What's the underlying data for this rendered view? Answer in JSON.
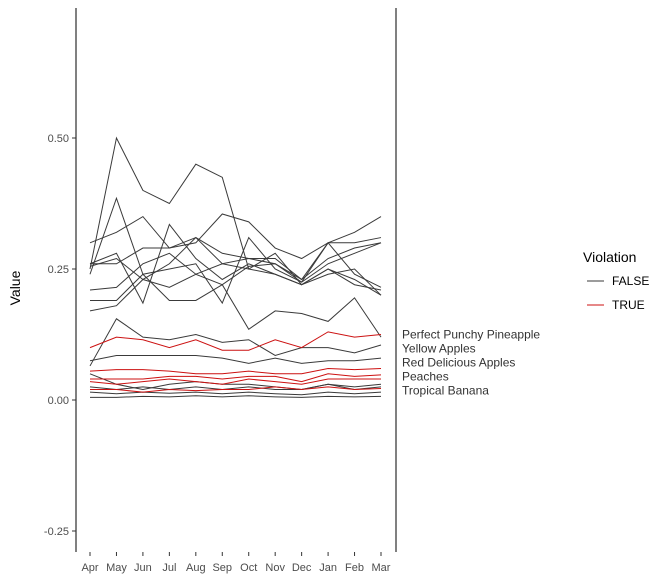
{
  "chart_data": {
    "type": "line",
    "title": "",
    "xlabel": "",
    "ylabel": "Value",
    "x": [
      "Apr",
      "May",
      "Jun",
      "Jul",
      "Aug",
      "Sep",
      "Oct",
      "Nov",
      "Dec",
      "Jan",
      "Feb",
      "Mar"
    ],
    "ylim": [
      -0.29,
      0.75
    ],
    "yticks": [
      -0.25,
      0.0,
      0.25,
      0.5
    ],
    "ytick_labels": [
      "-0.25",
      "0.00",
      "0.25",
      "0.50"
    ],
    "grid": false,
    "legend": {
      "title": "Violation",
      "placement": "right",
      "entries": [
        {
          "label": "FALSE",
          "color": "#3a3a3a"
        },
        {
          "label": "TRUE",
          "color": "#cc1111"
        }
      ]
    },
    "series": [
      {
        "name": "",
        "violation": false,
        "values": [
          0.25,
          0.5,
          0.4,
          0.375,
          0.45,
          0.425,
          0.25,
          0.28,
          0.22,
          0.25,
          0.23,
          0.2
        ]
      },
      {
        "name": "",
        "violation": false,
        "values": [
          0.24,
          0.385,
          0.24,
          0.25,
          0.26,
          0.185,
          0.31,
          0.25,
          0.225,
          0.3,
          0.3,
          0.31
        ]
      },
      {
        "name": "",
        "violation": false,
        "values": [
          0.3,
          0.32,
          0.35,
          0.29,
          0.31,
          0.26,
          0.27,
          0.26,
          0.23,
          0.27,
          0.29,
          0.3
        ]
      },
      {
        "name": "",
        "violation": false,
        "values": [
          0.26,
          0.28,
          0.185,
          0.335,
          0.27,
          0.23,
          0.26,
          0.24,
          0.22,
          0.24,
          0.25,
          0.2
        ]
      },
      {
        "name": "",
        "violation": false,
        "values": [
          0.26,
          0.26,
          0.29,
          0.29,
          0.3,
          0.355,
          0.34,
          0.29,
          0.27,
          0.3,
          0.32,
          0.35
        ]
      },
      {
        "name": "",
        "violation": false,
        "values": [
          0.255,
          0.27,
          0.23,
          0.26,
          0.31,
          0.28,
          0.27,
          0.27,
          0.23,
          0.3,
          0.24,
          0.215
        ]
      },
      {
        "name": "",
        "violation": false,
        "values": [
          0.21,
          0.215,
          0.26,
          0.28,
          0.24,
          0.26,
          0.25,
          0.24,
          0.22,
          0.25,
          0.22,
          0.21
        ]
      },
      {
        "name": "",
        "violation": false,
        "values": [
          0.17,
          0.18,
          0.23,
          0.215,
          0.24,
          0.22,
          0.255,
          0.26,
          0.225,
          0.26,
          0.28,
          0.3
        ]
      },
      {
        "name": "",
        "violation": false,
        "values": [
          0.19,
          0.19,
          0.24,
          0.19,
          0.19,
          0.22,
          0.135,
          0.17,
          0.165,
          0.15,
          0.195,
          0.12
        ]
      },
      {
        "name": "Perfect Punchy Pineapple",
        "violation": true,
        "values": [
          0.1,
          0.12,
          0.115,
          0.1,
          0.115,
          0.095,
          0.095,
          0.115,
          0.1,
          0.13,
          0.12,
          0.125
        ]
      },
      {
        "name": "Yellow Apples",
        "violation": false,
        "values": [
          0.065,
          0.155,
          0.12,
          0.115,
          0.125,
          0.11,
          0.115,
          0.085,
          0.1,
          0.1,
          0.09,
          0.105
        ]
      },
      {
        "name": "Red Delicious Apples",
        "violation": false,
        "values": [
          0.075,
          0.085,
          0.085,
          0.085,
          0.085,
          0.08,
          0.07,
          0.08,
          0.07,
          0.075,
          0.075,
          0.08
        ]
      },
      {
        "name": "",
        "violation": true,
        "values": [
          0.055,
          0.058,
          0.058,
          0.055,
          0.05,
          0.05,
          0.055,
          0.05,
          0.05,
          0.06,
          0.058,
          0.06
        ]
      },
      {
        "name": "Peaches",
        "violation": true,
        "values": [
          0.04,
          0.04,
          0.04,
          0.045,
          0.045,
          0.04,
          0.045,
          0.045,
          0.035,
          0.05,
          0.045,
          0.048
        ]
      },
      {
        "name": "",
        "violation": true,
        "values": [
          0.035,
          0.03,
          0.035,
          0.04,
          0.035,
          0.03,
          0.04,
          0.035,
          0.03,
          0.04,
          0.04,
          0.04
        ]
      },
      {
        "name": "",
        "violation": false,
        "values": [
          0.05,
          0.03,
          0.02,
          0.03,
          0.035,
          0.03,
          0.03,
          0.025,
          0.02,
          0.03,
          0.025,
          0.03
        ]
      },
      {
        "name": "",
        "violation": false,
        "values": [
          0.025,
          0.02,
          0.025,
          0.02,
          0.025,
          0.02,
          0.025,
          0.02,
          0.02,
          0.03,
          0.02,
          0.025
        ]
      },
      {
        "name": "Tropical Banana",
        "violation": true,
        "values": [
          0.02,
          0.02,
          0.015,
          0.02,
          0.018,
          0.02,
          0.02,
          0.025,
          0.02,
          0.025,
          0.02,
          0.022
        ]
      },
      {
        "name": "",
        "violation": false,
        "values": [
          0.015,
          0.012,
          0.015,
          0.013,
          0.015,
          0.012,
          0.015,
          0.012,
          0.01,
          0.015,
          0.012,
          0.015
        ]
      },
      {
        "name": "",
        "violation": false,
        "values": [
          0.005,
          0.005,
          0.007,
          0.006,
          0.008,
          0.006,
          0.008,
          0.006,
          0.005,
          0.007,
          0.006,
          0.007
        ]
      }
    ]
  }
}
